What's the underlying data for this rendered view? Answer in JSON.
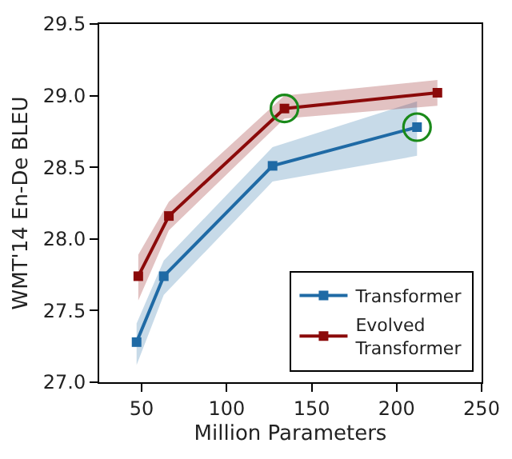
{
  "chart_data": {
    "type": "line",
    "xlabel": "Million Parameters",
    "ylabel": "WMT'14 En-De BLEU",
    "xlim": [
      25,
      250
    ],
    "xticks": [
      50,
      100,
      150,
      200,
      250
    ],
    "ylim": [
      27.0,
      29.5
    ],
    "yticks": [
      {
        "value": 27.0,
        "label": "27.0"
      },
      {
        "value": 27.5,
        "label": "27.5"
      },
      {
        "value": 28.0,
        "label": "28.0"
      },
      {
        "value": 28.5,
        "label": "28.5"
      },
      {
        "value": 29.0,
        "label": "29.0"
      },
      {
        "value": 29.5,
        "label": "29.5"
      }
    ],
    "legend": "bottom right",
    "marker": "square",
    "line_style": "solid",
    "series": [
      {
        "name": "Transformer",
        "color": "#1f6aa5",
        "x": [
          47,
          63,
          127,
          212
        ],
        "values": [
          27.28,
          27.74,
          28.51,
          28.78
        ],
        "lower": [
          27.12,
          27.61,
          28.4,
          28.58
        ],
        "upper": [
          27.41,
          27.85,
          28.64,
          28.96
        ]
      },
      {
        "name": "Evolved Transformer",
        "color": "#8b0a0a",
        "x": [
          48,
          66,
          134,
          224
        ],
        "values": [
          27.74,
          28.16,
          28.91,
          29.02
        ],
        "lower": [
          27.57,
          28.06,
          28.84,
          28.93
        ],
        "upper": [
          27.89,
          28.26,
          29.0,
          29.11
        ]
      },
      {
        "type": "scatter",
        "marker": "circle",
        "color": "#1a8a1a",
        "x": [
          134,
          212
        ],
        "values": [
          28.91,
          28.78
        ]
      }
    ]
  }
}
